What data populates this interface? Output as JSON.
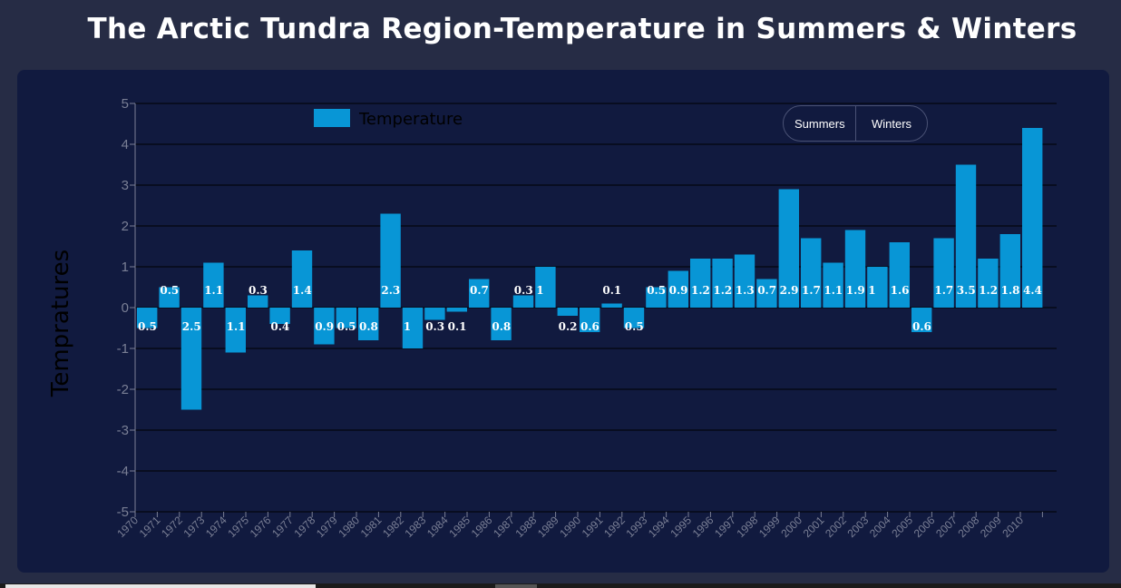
{
  "title": "The Arctic Tundra Region-Temperature in Summers & Winters",
  "toggle": {
    "summers_label": "Summers",
    "winters_label": "Winters"
  },
  "colors": {
    "bar": "#0896d6",
    "card_bg": "#111a3f",
    "page_bg": "#262c45",
    "grid": "#000000",
    "tick": "#7a7f95"
  },
  "chart_data": {
    "type": "bar",
    "title": "The Arctic Tundra Region-Temperature in Summers & Winters",
    "xlabel": "",
    "ylabel": "Tempratures",
    "ylim": [
      -5,
      5
    ],
    "yticks": [
      5,
      4,
      3,
      2,
      1,
      0,
      -1,
      -2,
      -3,
      -4,
      -5
    ],
    "grid": true,
    "legend_position": "top-left",
    "categories": [
      "1970",
      "1971",
      "1972",
      "1973",
      "1974",
      "1975",
      "1976",
      "1977",
      "1978",
      "1979",
      "1980",
      "1981",
      "1982",
      "1983",
      "1984",
      "1985",
      "1986",
      "1987",
      "1988",
      "1989",
      "1990",
      "1991",
      "1992",
      "1993",
      "1994",
      "1995",
      "1996",
      "1997",
      "1998",
      "1999",
      "2000",
      "2001",
      "2002",
      "2003",
      "2004",
      "2005",
      "2006",
      "2007",
      "2008",
      "2009",
      "2010"
    ],
    "series": [
      {
        "name": "Temperature",
        "values": [
          -0.5,
          0.5,
          -2.5,
          1.1,
          -1.1,
          0.3,
          -0.4,
          1.4,
          -0.9,
          -0.5,
          -0.8,
          2.3,
          -1,
          -0.3,
          -0.1,
          0.7,
          -0.8,
          0.3,
          1,
          -0.2,
          -0.6,
          0.1,
          -0.5,
          0.5,
          0.9,
          1.2,
          1.2,
          1.3,
          0.7,
          2.9,
          1.7,
          1.1,
          1.9,
          1,
          1.6,
          -0.6,
          1.7,
          3.5,
          1.2,
          1.8,
          4.4
        ],
        "data_labels": [
          "0.5",
          "0.5",
          "2.5",
          "1.1",
          "1.1",
          "0.3",
          "0.4",
          "1.4",
          "0.9",
          "0.5",
          "0.8",
          "2.3",
          "1",
          "0.3",
          "0.1",
          "0.7",
          "0.8",
          "0.3",
          "1",
          "0.2",
          "0.6",
          "0.1",
          "0.5",
          "0.5",
          "0.9",
          "1.2",
          "1.2",
          "1.3",
          "0.7",
          "2.9",
          "1.7",
          "1.1",
          "1.9",
          "1",
          "1.6",
          "0.6",
          "1.7",
          "3.5",
          "1.2",
          "1.8",
          "4.4"
        ]
      }
    ]
  }
}
